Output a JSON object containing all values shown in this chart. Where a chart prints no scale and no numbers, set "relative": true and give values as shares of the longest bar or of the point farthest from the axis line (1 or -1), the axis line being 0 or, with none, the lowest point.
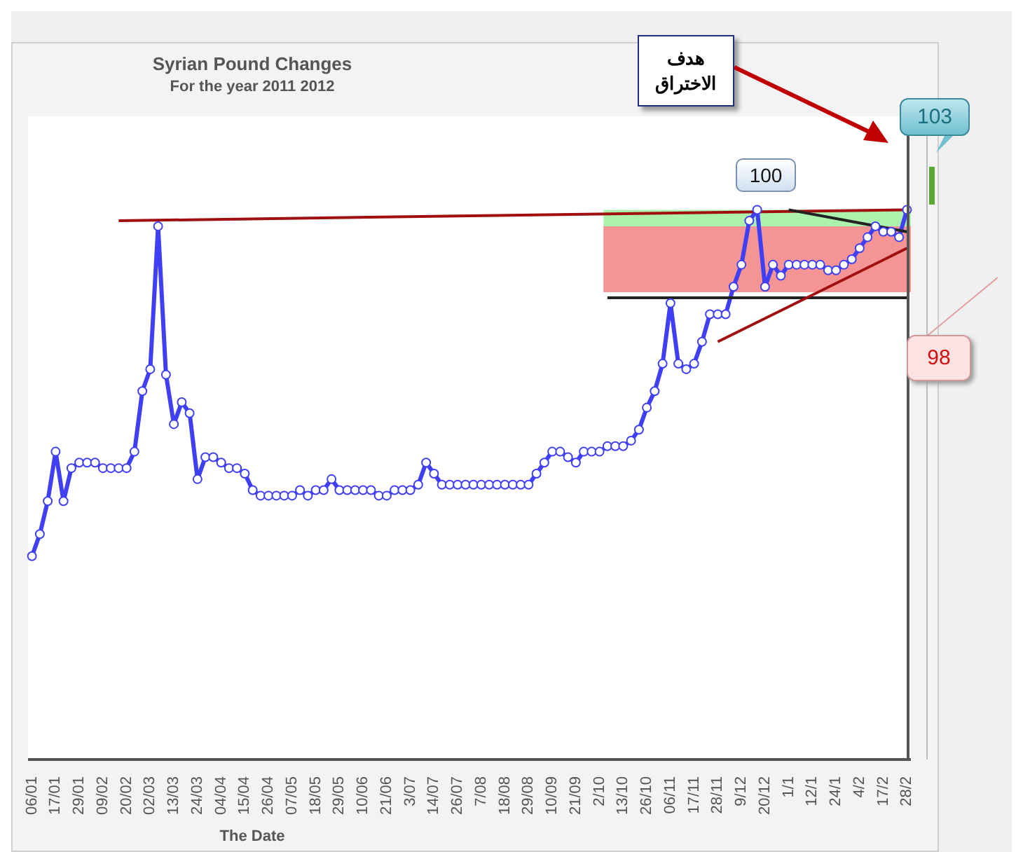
{
  "chart_data": {
    "type": "line",
    "title": "Syrian Pound Changes",
    "subtitle": "For the year 2011 2012",
    "xlabel": "The Date",
    "relative": true,
    "marker": "circle",
    "categories": [
      "06/01",
      null,
      null,
      "17/01",
      null,
      null,
      "29/01",
      null,
      null,
      "09/02",
      null,
      null,
      "20/02",
      null,
      null,
      "02/03",
      null,
      null,
      "13/03",
      null,
      null,
      "24/03",
      null,
      null,
      "04/04",
      null,
      null,
      "15/04",
      null,
      null,
      "26/04",
      null,
      null,
      "07/05",
      null,
      null,
      "18/05",
      null,
      null,
      "29/05",
      null,
      null,
      "10/06",
      null,
      null,
      "21/06",
      null,
      null,
      "3/07",
      null,
      null,
      "14/07",
      null,
      null,
      "26/07",
      null,
      null,
      "7/08",
      null,
      null,
      "18/08",
      null,
      null,
      "29/08",
      null,
      null,
      "10/09",
      null,
      null,
      "21/09",
      null,
      null,
      "2/10",
      null,
      null,
      "13/10",
      null,
      null,
      "26/10",
      null,
      null,
      "06/11",
      null,
      null,
      "17/11",
      null,
      null,
      "28/11",
      null,
      null,
      "9/12",
      null,
      null,
      "20/12",
      null,
      null,
      "1/1",
      null,
      null,
      "12/1",
      null,
      null,
      "24/1",
      null,
      null,
      "4/2",
      null,
      null,
      "17/2",
      null,
      null,
      "28/2"
    ],
    "series": [
      {
        "color": "#3f3ff5",
        "values": [
          0.37,
          0.41,
          0.47,
          0.56,
          0.47,
          0.53,
          0.54,
          0.54,
          0.54,
          0.53,
          0.53,
          0.53,
          0.53,
          0.56,
          0.67,
          0.71,
          0.97,
          0.7,
          0.61,
          0.65,
          0.63,
          0.51,
          0.55,
          0.55,
          0.54,
          0.53,
          0.53,
          0.52,
          0.49,
          0.48,
          0.48,
          0.48,
          0.48,
          0.48,
          0.49,
          0.48,
          0.49,
          0.49,
          0.51,
          0.49,
          0.49,
          0.49,
          0.49,
          0.49,
          0.48,
          0.48,
          0.49,
          0.49,
          0.49,
          0.5,
          0.54,
          0.52,
          0.5,
          0.5,
          0.5,
          0.5,
          0.5,
          0.5,
          0.5,
          0.5,
          0.5,
          0.5,
          0.5,
          0.5,
          0.52,
          0.54,
          0.56,
          0.56,
          0.55,
          0.54,
          0.56,
          0.56,
          0.56,
          0.57,
          0.57,
          0.57,
          0.58,
          0.6,
          0.64,
          0.67,
          0.72,
          0.83,
          0.72,
          0.71,
          0.72,
          0.76,
          0.81,
          0.81,
          0.81,
          0.86,
          0.9,
          0.98,
          1.0,
          0.86,
          0.9,
          0.88,
          0.9,
          0.9,
          0.9,
          0.9,
          0.9,
          0.89,
          0.89,
          0.9,
          0.91,
          0.93,
          0.95,
          0.97,
          0.96,
          0.96,
          0.95,
          1.0
        ]
      },
      {
        "type": "line",
        "color": "#a01010",
        "marker": "none",
        "values": [
          null,
          null,
          null,
          null,
          null,
          null,
          null,
          null,
          null,
          null,
          null,
          0.98,
          null,
          null,
          null,
          null,
          null,
          null,
          null,
          null,
          null,
          null,
          null,
          null,
          null,
          null,
          null,
          null,
          null,
          null,
          null,
          null,
          null,
          null,
          null,
          null,
          null,
          null,
          null,
          null,
          null,
          null,
          null,
          null,
          null,
          null,
          null,
          null,
          null,
          null,
          null,
          null,
          null,
          null,
          null,
          null,
          null,
          null,
          null,
          null,
          null,
          null,
          null,
          null,
          null,
          null,
          null,
          null,
          null,
          null,
          null,
          null,
          null,
          null,
          null,
          null,
          null,
          null,
          null,
          null,
          null,
          null,
          null,
          null,
          null,
          null,
          null,
          null,
          null,
          null,
          null,
          null,
          null,
          null,
          null,
          null,
          null,
          null,
          null,
          null,
          null,
          null,
          null,
          null,
          null,
          null,
          null,
          null,
          null,
          null,
          null,
          1.0
        ]
      },
      {
        "type": "line",
        "color": "#222222",
        "marker": "none",
        "values": [
          null,
          null,
          null,
          null,
          null,
          null,
          null,
          null,
          null,
          null,
          null,
          null,
          null,
          null,
          null,
          null,
          null,
          null,
          null,
          null,
          null,
          null,
          null,
          null,
          null,
          null,
          null,
          null,
          null,
          null,
          null,
          null,
          null,
          null,
          null,
          null,
          null,
          null,
          null,
          null,
          null,
          null,
          null,
          null,
          null,
          null,
          null,
          null,
          null,
          null,
          null,
          null,
          null,
          null,
          null,
          null,
          null,
          null,
          null,
          null,
          null,
          null,
          null,
          null,
          null,
          null,
          null,
          null,
          null,
          null,
          null,
          null,
          null,
          null,
          null,
          null,
          null,
          null,
          null,
          null,
          null,
          null,
          null,
          null,
          null,
          null,
          null,
          null,
          null,
          null,
          null,
          null,
          null,
          null,
          null,
          null,
          1.0,
          null,
          null,
          null,
          null,
          null,
          null,
          null,
          null,
          null,
          null,
          null,
          null,
          null,
          null,
          0.96
        ]
      },
      {
        "type": "line",
        "color": "#222222",
        "marker": "none",
        "values": [
          null,
          null,
          null,
          null,
          null,
          null,
          null,
          null,
          null,
          null,
          null,
          null,
          null,
          null,
          null,
          null,
          null,
          null,
          null,
          null,
          null,
          null,
          null,
          null,
          null,
          null,
          null,
          null,
          null,
          null,
          null,
          null,
          null,
          null,
          null,
          null,
          null,
          null,
          null,
          null,
          null,
          null,
          null,
          null,
          null,
          null,
          null,
          null,
          null,
          null,
          null,
          null,
          null,
          null,
          null,
          null,
          null,
          null,
          null,
          null,
          null,
          null,
          null,
          null,
          null,
          null,
          null,
          null,
          null,
          null,
          null,
          null,
          null,
          0.84,
          null,
          null,
          null,
          null,
          null,
          null,
          null,
          null,
          null,
          null,
          null,
          null,
          null,
          null,
          null,
          null,
          null,
          null,
          null,
          null,
          null,
          null,
          null,
          null,
          null,
          null,
          null,
          null,
          null,
          null,
          null,
          null,
          null,
          null,
          null,
          null,
          null,
          0.84
        ]
      },
      {
        "type": "line",
        "color": "#a01010",
        "marker": "none",
        "values": [
          null,
          null,
          null,
          null,
          null,
          null,
          null,
          null,
          null,
          null,
          null,
          null,
          null,
          null,
          null,
          null,
          null,
          null,
          null,
          null,
          null,
          null,
          null,
          null,
          null,
          null,
          null,
          null,
          null,
          null,
          null,
          null,
          null,
          null,
          null,
          null,
          null,
          null,
          null,
          null,
          null,
          null,
          null,
          null,
          null,
          null,
          null,
          null,
          null,
          null,
          null,
          null,
          null,
          null,
          null,
          null,
          null,
          null,
          null,
          null,
          null,
          null,
          null,
          null,
          null,
          null,
          null,
          null,
          null,
          null,
          null,
          null,
          null,
          null,
          null,
          null,
          null,
          null,
          null,
          null,
          null,
          null,
          null,
          null,
          null,
          null,
          null,
          0.76,
          null,
          null,
          null,
          null,
          null,
          null,
          null,
          null,
          null,
          null,
          null,
          null,
          null,
          null,
          null,
          null,
          null,
          null,
          null,
          null,
          null,
          null,
          null,
          0.93
        ]
      }
    ],
    "bands": [
      {
        "axis": "y",
        "from": 0.97,
        "to": 1.0,
        "color": "#90ee90"
      },
      {
        "axis": "y",
        "from": 0.85,
        "to": 0.97,
        "color": "#f07070"
      }
    ],
    "annotations": [
      "هدف الاختراق",
      "103",
      "100",
      "98"
    ]
  }
}
